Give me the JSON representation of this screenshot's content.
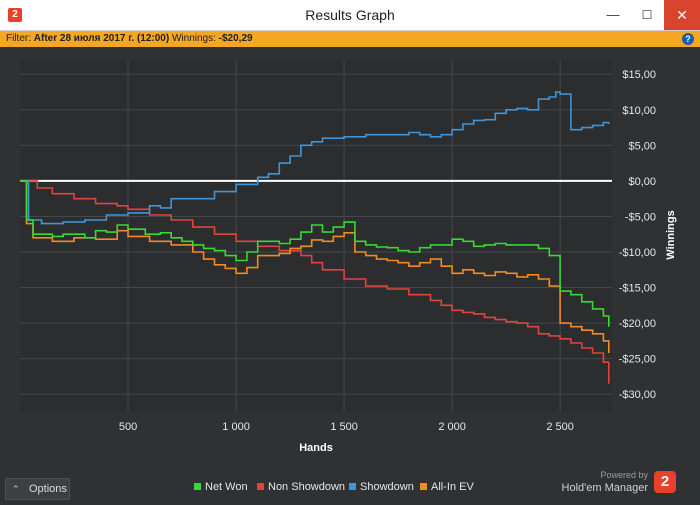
{
  "window": {
    "app_icon_label": "2",
    "title": "Results Graph",
    "min_glyph": "—",
    "max_glyph": "☐",
    "close_glyph": "✕"
  },
  "filter": {
    "prefix": "Filter: ",
    "value": "After 28 июля 2017 г. (12:00)",
    "winnings_label": "  Winnings: ",
    "winnings_value": "-$20,29",
    "help_glyph": "?"
  },
  "options_button": {
    "chevron": "⌃",
    "label": "Options"
  },
  "branding": {
    "powered": "Powered by",
    "name": "Hold'em Manager",
    "icon_label": "2"
  },
  "colors": {
    "background": "#2f3133",
    "plot_background": "#2b2d2f",
    "net_won": "#39d833",
    "non_showdown": "#e0443c",
    "showdown": "#3f95d8",
    "allin_ev": "#f08b26",
    "filter_bar": "#f5a623",
    "close_button": "#d9442f"
  },
  "chart_data": {
    "type": "line",
    "xlabel": "Hands",
    "ylabel": "Winnings",
    "xlim": [
      0,
      2740
    ],
    "ylim": [
      -32.5,
      17
    ],
    "grid": true,
    "legend": "bottom",
    "x_ticks": [
      500,
      1000,
      1500,
      2000,
      2500
    ],
    "x_tick_labels": [
      "500",
      "1 000",
      "1 500",
      "2 000",
      "2 500"
    ],
    "y_ticks": [
      15,
      10,
      5,
      0,
      -5,
      -10,
      -15,
      -20,
      -25,
      -30
    ],
    "y_tick_labels": [
      "$15,00",
      "$10,00",
      "$5,00",
      "$0,00",
      "-$5,00",
      "-$10,00",
      "-$15,00",
      "-$20,00",
      "-$25,00",
      "-$30,00"
    ],
    "zero_line": 0,
    "series": [
      {
        "name": "Net Won",
        "color": "#39d833",
        "x": [
          0,
          30,
          60,
          150,
          200,
          300,
          350,
          400,
          450,
          500,
          580,
          650,
          700,
          750,
          800,
          850,
          900,
          950,
          1000,
          1050,
          1100,
          1150,
          1200,
          1250,
          1300,
          1350,
          1400,
          1450,
          1500,
          1550,
          1600,
          1650,
          1700,
          1750,
          1800,
          1850,
          1900,
          1950,
          2000,
          2050,
          2100,
          2150,
          2200,
          2250,
          2300,
          2350,
          2400,
          2450,
          2500,
          2550,
          2600,
          2650,
          2700,
          2725
        ],
        "y": [
          0,
          -5.5,
          -7.5,
          -7.8,
          -7.5,
          -8,
          -7,
          -7.2,
          -6.2,
          -6.8,
          -7.5,
          -7.3,
          -8,
          -8.5,
          -9,
          -9.5,
          -9.8,
          -10.5,
          -11.2,
          -10,
          -8.5,
          -8.5,
          -8.8,
          -8.2,
          -7.2,
          -6.2,
          -7.2,
          -6.5,
          -5.8,
          -8.5,
          -9,
          -9.3,
          -9.4,
          -9.8,
          -10,
          -9.4,
          -9,
          -9,
          -8.2,
          -8.5,
          -9.2,
          -9,
          -8.8,
          -9,
          -9,
          -9,
          -9.5,
          -10.5,
          -15.5,
          -16,
          -17,
          -18,
          -19,
          -20.5
        ]
      },
      {
        "name": "Non Showdown",
        "color": "#e0443c",
        "x": [
          0,
          30,
          80,
          150,
          250,
          350,
          450,
          500,
          600,
          700,
          800,
          900,
          1000,
          1100,
          1200,
          1300,
          1350,
          1400,
          1500,
          1600,
          1700,
          1800,
          1900,
          1950,
          2000,
          2050,
          2100,
          2150,
          2200,
          2250,
          2300,
          2350,
          2400,
          2450,
          2500,
          2550,
          2600,
          2650,
          2700,
          2725
        ],
        "y": [
          0,
          0,
          -1,
          -1.8,
          -2.5,
          -3.2,
          -3.5,
          -4,
          -4.8,
          -5.5,
          -6.5,
          -7.5,
          -8.5,
          -9.2,
          -9.8,
          -10.5,
          -11.5,
          -12.5,
          -13.8,
          -14.8,
          -15.2,
          -16,
          -16.8,
          -17.5,
          -18.2,
          -18.5,
          -18.7,
          -19.2,
          -19.5,
          -19.8,
          -20,
          -20.5,
          -21.5,
          -21.8,
          -22.2,
          -22.8,
          -23.5,
          -24.2,
          -25.5,
          -28.5
        ]
      },
      {
        "name": "Showdown",
        "color": "#3f95d8",
        "x": [
          0,
          40,
          100,
          200,
          300,
          400,
          500,
          600,
          650,
          700,
          800,
          900,
          1000,
          1100,
          1150,
          1200,
          1250,
          1300,
          1350,
          1400,
          1450,
          1500,
          1550,
          1600,
          1700,
          1800,
          1850,
          1900,
          1950,
          2000,
          2050,
          2100,
          2150,
          2200,
          2250,
          2300,
          2350,
          2400,
          2450,
          2480,
          2500,
          2550,
          2600,
          2650,
          2700,
          2725
        ],
        "y": [
          0,
          -5.5,
          -6,
          -5.8,
          -5.5,
          -4.8,
          -4.5,
          -3.5,
          -3.8,
          -2.5,
          -2.5,
          -1.5,
          -0.5,
          0.5,
          1,
          2.5,
          3.5,
          5,
          5.5,
          6,
          6,
          6.2,
          6.2,
          6.5,
          6.5,
          6.8,
          6.5,
          6.2,
          6.5,
          7.2,
          8,
          8.5,
          8.6,
          9.5,
          10,
          10.2,
          10,
          11.5,
          11.8,
          12.5,
          12.2,
          7.2,
          7.5,
          7.8,
          8.2,
          8
        ]
      },
      {
        "name": "All-In EV",
        "color": "#f08b26",
        "x": [
          0,
          30,
          60,
          150,
          250,
          350,
          450,
          500,
          600,
          700,
          800,
          850,
          900,
          950,
          1000,
          1050,
          1100,
          1150,
          1200,
          1250,
          1300,
          1350,
          1400,
          1450,
          1500,
          1550,
          1600,
          1650,
          1700,
          1750,
          1800,
          1850,
          1900,
          1950,
          2000,
          2050,
          2100,
          2150,
          2200,
          2250,
          2300,
          2350,
          2400,
          2450,
          2500,
          2550,
          2600,
          2650,
          2700,
          2725
        ],
        "y": [
          0,
          -6,
          -8,
          -8.5,
          -8,
          -8.2,
          -7,
          -7.8,
          -8.5,
          -9,
          -10,
          -11,
          -11.8,
          -12.3,
          -13,
          -12.2,
          -10.5,
          -10.5,
          -10.2,
          -9.5,
          -9.2,
          -8.3,
          -8.5,
          -7.8,
          -7.3,
          -10,
          -10.5,
          -11,
          -11.2,
          -11.5,
          -12,
          -11.5,
          -11,
          -12,
          -13,
          -12.5,
          -13,
          -13.3,
          -12.8,
          -13,
          -13.5,
          -13.2,
          -13.8,
          -14.8,
          -20,
          -20.5,
          -21,
          -21.5,
          -22.5,
          -24.2
        ]
      }
    ]
  }
}
